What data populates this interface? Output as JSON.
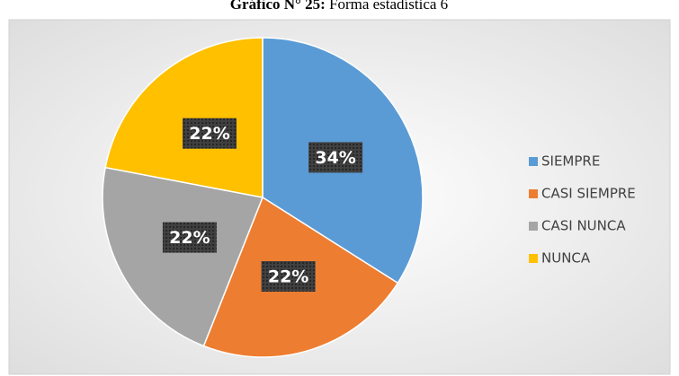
{
  "chart_data": {
    "type": "pie",
    "title_prefix": "Gráfico N° 25:",
    "title": "Forma estadística 6",
    "categories": [
      "SIEMPRE",
      "CASI SIEMPRE",
      "CASI NUNCA",
      "NUNCA"
    ],
    "values": [
      34,
      22,
      22,
      22
    ],
    "value_labels": [
      "34%",
      "22%",
      "22%",
      "22%"
    ],
    "colors": [
      "#5b9bd5",
      "#ed7d31",
      "#a5a5a5",
      "#ffc000"
    ],
    "legend": "right"
  }
}
